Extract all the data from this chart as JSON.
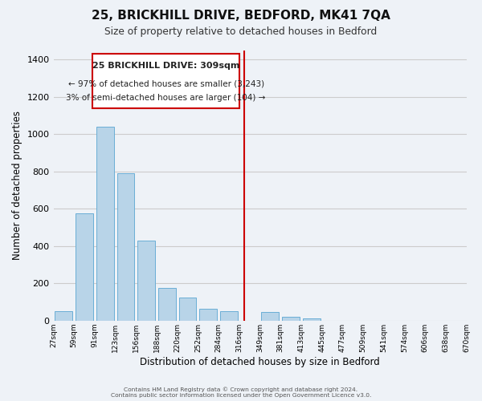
{
  "title": "25, BRICKHILL DRIVE, BEDFORD, MK41 7QA",
  "subtitle": "Size of property relative to detached houses in Bedford",
  "xlabel": "Distribution of detached houses by size in Bedford",
  "ylabel": "Number of detached properties",
  "footer_lines": [
    "Contains HM Land Registry data © Crown copyright and database right 2024.",
    "Contains public sector information licensed under the Open Government Licence v3.0."
  ],
  "bin_labels": [
    "27sqm",
    "59sqm",
    "91sqm",
    "123sqm",
    "156sqm",
    "188sqm",
    "220sqm",
    "252sqm",
    "284sqm",
    "316sqm",
    "349sqm",
    "381sqm",
    "413sqm",
    "445sqm",
    "477sqm",
    "509sqm",
    "541sqm",
    "574sqm",
    "606sqm",
    "638sqm",
    "670sqm"
  ],
  "bar_values": [
    50,
    575,
    1040,
    790,
    430,
    175,
    125,
    65,
    50,
    0,
    47,
    22,
    14,
    0,
    0,
    0,
    0,
    0,
    0,
    0
  ],
  "bar_color": "#b8d4e8",
  "bar_edge_color": "#6aaed6",
  "vline_x": 8.75,
  "vline_color": "#cc0000",
  "annotation_title": "25 BRICKHILL DRIVE: 309sqm",
  "annotation_line2": "← 97% of detached houses are smaller (3,243)",
  "annotation_line3": "3% of semi-detached houses are larger (104) →",
  "annotation_box_color": "#ffffff",
  "annotation_box_edge": "#cc0000",
  "ylim": [
    0,
    1450
  ],
  "yticks": [
    0,
    200,
    400,
    600,
    800,
    1000,
    1200,
    1400
  ],
  "grid_color": "#cccccc",
  "background_color": "#eef2f7"
}
